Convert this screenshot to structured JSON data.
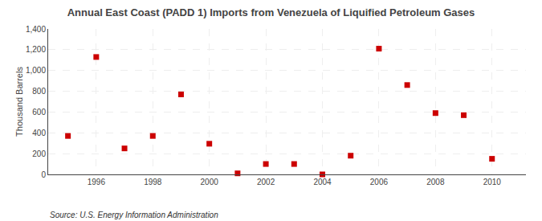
{
  "chart_data": {
    "type": "scatter",
    "title": "Annual East Coast (PADD 1) Imports from Venezuela of Liquified Petroleum Gases",
    "ylabel": "Thousand Barrels",
    "annotations": [
      "Source: U.S. Energy Information Administration"
    ],
    "x": [
      1995,
      1996,
      1997,
      1998,
      1999,
      2000,
      2001,
      2002,
      2003,
      2004,
      2005,
      2006,
      2007,
      2008,
      2009,
      2010
    ],
    "values": [
      370,
      1130,
      250,
      370,
      770,
      295,
      10,
      100,
      100,
      0,
      180,
      1210,
      860,
      590,
      570,
      150
    ],
    "color": "#cc0000",
    "marker": "square",
    "xlim": [
      1994.3,
      2011.2
    ],
    "xticks": [
      1996,
      1998,
      2000,
      2002,
      2004,
      2006,
      2008,
      2010
    ],
    "ylim": [
      0,
      1400
    ],
    "yticks": [
      0,
      200,
      400,
      600,
      800,
      {
        "value": 1000,
        "label": "1,000"
      },
      {
        "value": 1200,
        "label": "1,200"
      },
      {
        "value": 1400,
        "label": "1,400"
      }
    ],
    "grid": true
  }
}
